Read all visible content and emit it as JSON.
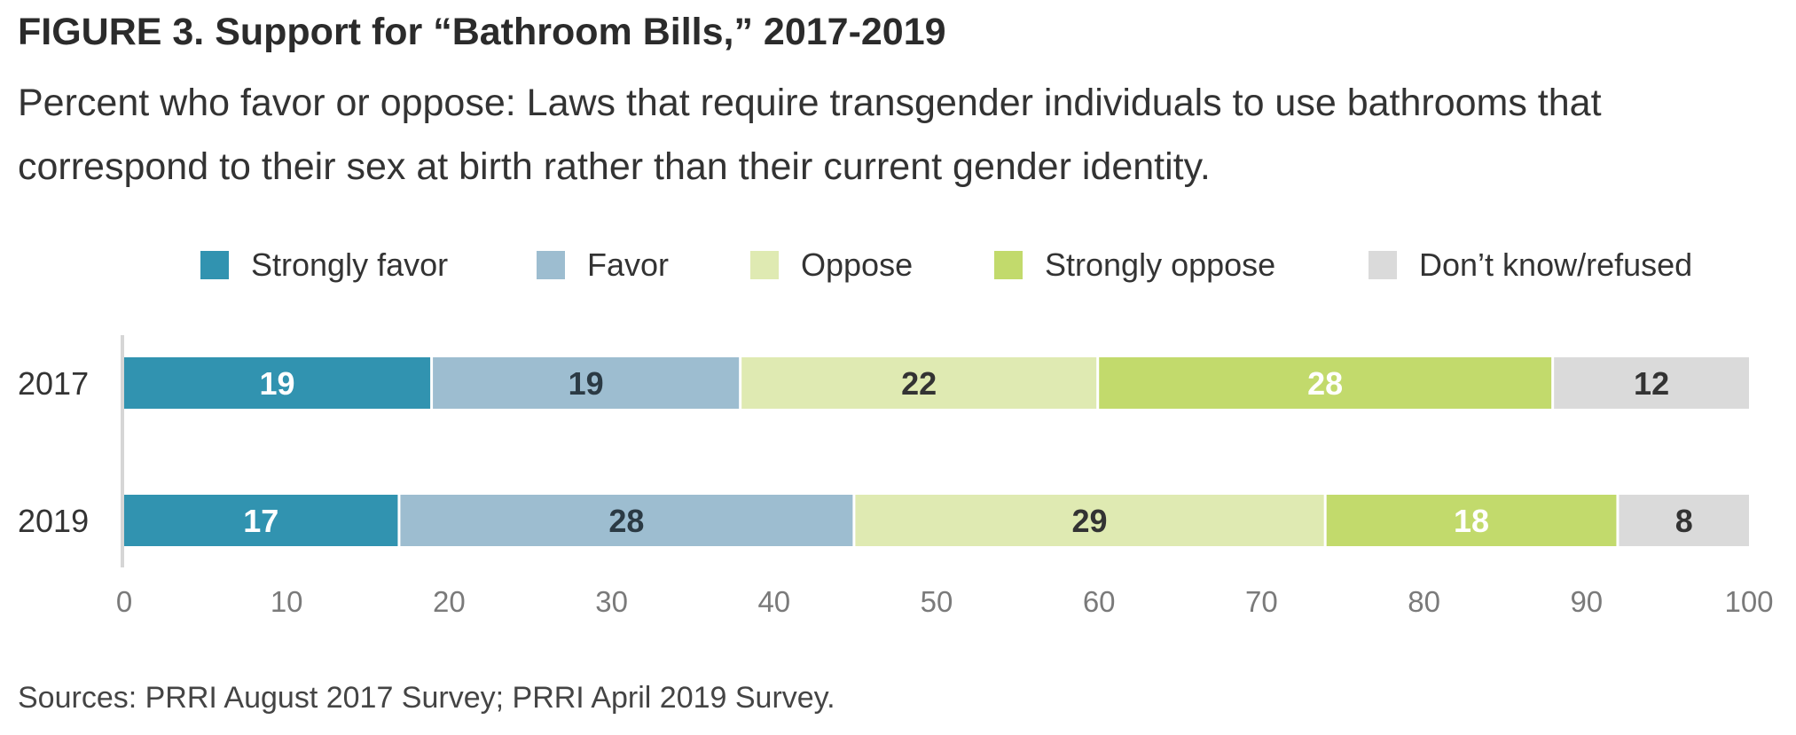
{
  "figure": {
    "title": "FIGURE 3.  Support for “Bathroom Bills,” 2017-2019",
    "subtitle": "Percent who favor or oppose: Laws that require transgender individuals to use bathrooms that correspond to their sex at birth rather than their current gender identity.",
    "source": "Sources: PRRI August 2017 Survey; PRRI April 2019 Survey."
  },
  "chart_data": {
    "type": "bar",
    "orientation": "horizontal",
    "stacked": true,
    "title": "FIGURE 3.  Support for “Bathroom Bills,” 2017-2019",
    "categories": [
      "2017",
      "2019"
    ],
    "series": [
      {
        "name": "Strongly favor",
        "values": [
          19,
          17
        ],
        "color": "#3193b0",
        "label_color": "#ffffff"
      },
      {
        "name": "Favor",
        "values": [
          19,
          28
        ],
        "color": "#9dbdd0",
        "label_color": "#2b3a44"
      },
      {
        "name": "Oppose",
        "values": [
          22,
          29
        ],
        "color": "#dfeab2",
        "label_color": "#333333"
      },
      {
        "name": "Strongly oppose",
        "values": [
          28,
          18
        ],
        "color": "#c2da6c",
        "label_color": "#ffffff"
      },
      {
        "name": "Don’t know/refused",
        "values": [
          12,
          8
        ],
        "color": "#dadada",
        "label_color": "#333333"
      }
    ],
    "xlim": [
      0,
      100
    ],
    "xticks": [
      0,
      10,
      20,
      30,
      40,
      50,
      60,
      70,
      80,
      90,
      100
    ],
    "legend_position": "top",
    "grid": false
  }
}
